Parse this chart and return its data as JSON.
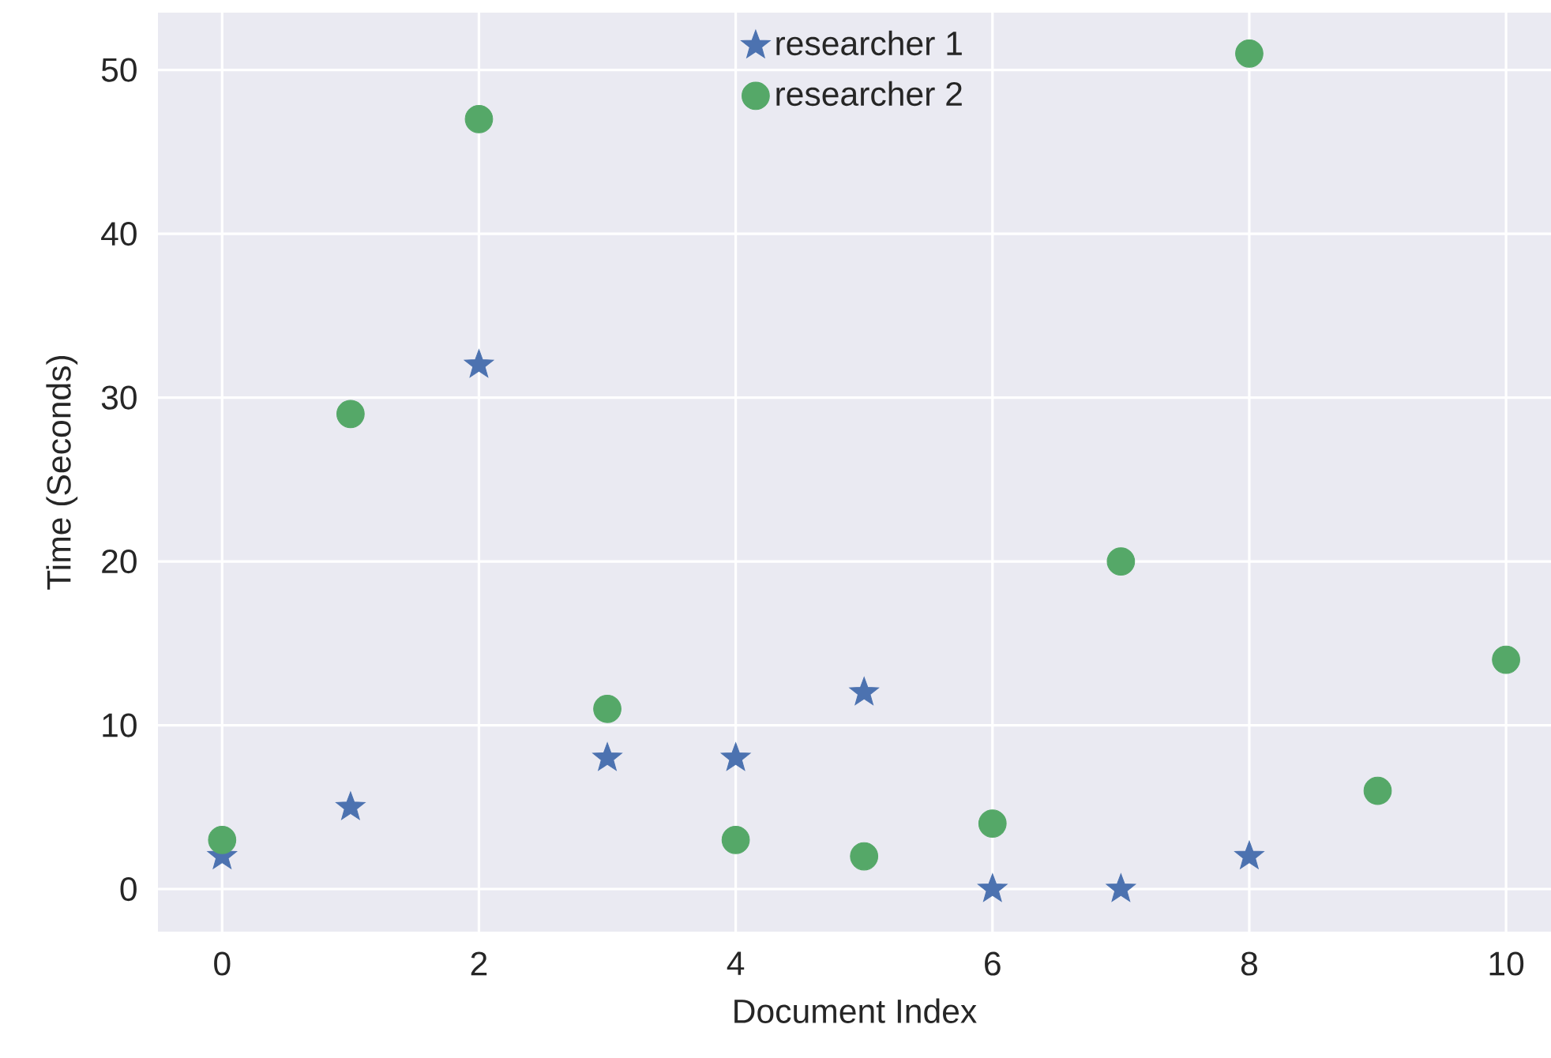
{
  "chart_data": {
    "type": "scatter",
    "xlabel": "Document Index",
    "ylabel": "Time (Seconds)",
    "xlim": [
      -0.5,
      10.35
    ],
    "ylim": [
      -2.6,
      53.5
    ],
    "xticks": [
      0,
      2,
      4,
      6,
      8,
      10
    ],
    "yticks": [
      0,
      10,
      20,
      30,
      40,
      50
    ],
    "grid": true,
    "legend": "top",
    "series": [
      {
        "name": "researcher 1",
        "color": "#4c72b0",
        "marker": "star",
        "x": [
          0,
          1,
          2,
          3,
          4,
          5,
          6,
          7,
          8
        ],
        "values": [
          2,
          5,
          32,
          8,
          8,
          12,
          0,
          0,
          2
        ]
      },
      {
        "name": "researcher 2",
        "color": "#55a868",
        "marker": "circle",
        "x": [
          0,
          1,
          2,
          3,
          4,
          5,
          6,
          7,
          8,
          9,
          10
        ],
        "values": [
          3,
          29,
          47,
          11,
          3,
          2,
          4,
          20,
          51,
          6,
          14
        ]
      }
    ]
  }
}
